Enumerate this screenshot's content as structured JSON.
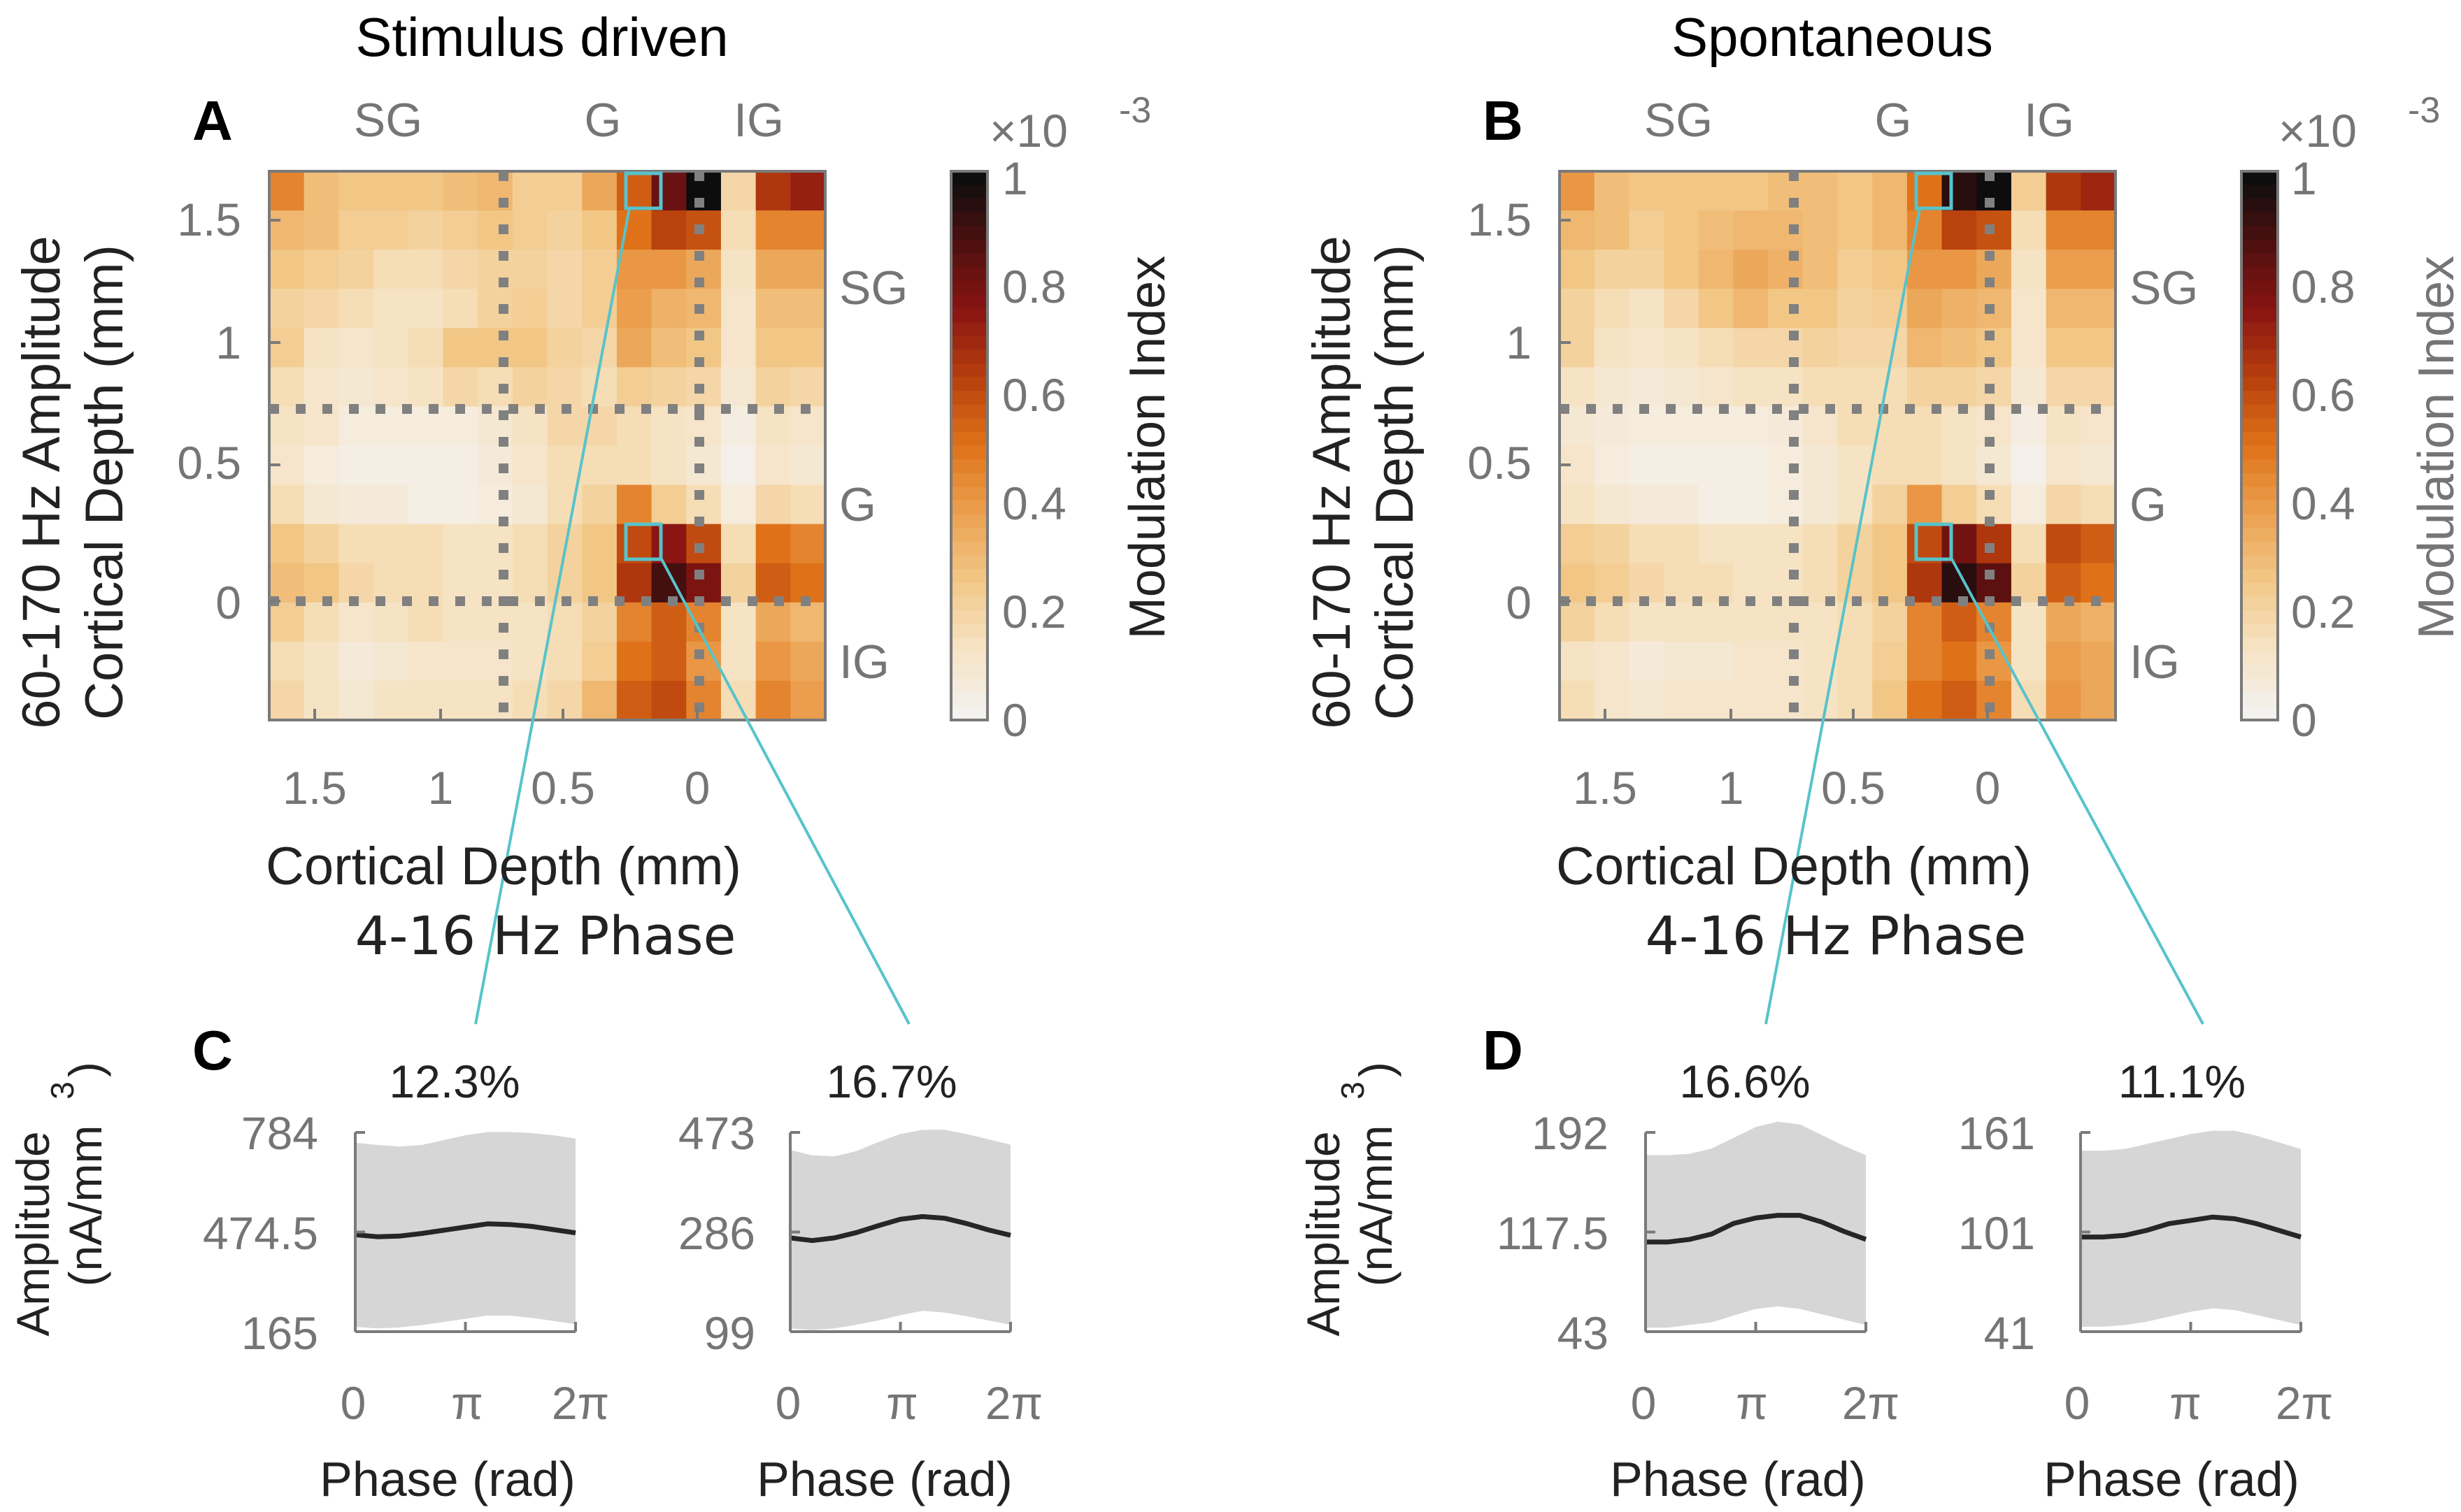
{
  "colors": {
    "axis_frame": "#7a7a7a",
    "tick_text": "#757575",
    "dotted_boundary": "#808080",
    "highlight_box": "#57c3ca",
    "callout_line": "#57c3ca",
    "trace_line": "#262626",
    "band_fill": "#d6d6d6",
    "colormap": [
      "#f4f2ef",
      "#f6e2c2",
      "#f2c786",
      "#eba04f",
      "#df7219",
      "#b8400d",
      "#8a1512",
      "#501010",
      "#0d0d0d"
    ]
  },
  "chart_data": [
    {
      "panel": "A",
      "type": "heatmap",
      "title": "Stimulus driven",
      "xlabel": "Cortical Depth (mm)",
      "xlabel2": "4-16 Hz Phase",
      "ylabel": "60-170 Hz Amplitude",
      "ylabel2": "Cortical Depth (mm)",
      "xticks": [
        "1.5",
        "1",
        "0.5",
        "0"
      ],
      "yticks": [
        "1.5",
        "1",
        "0.5",
        "0"
      ],
      "top_regions": [
        "SG",
        "G",
        "IG"
      ],
      "right_regions": [
        "SG",
        "G",
        "IG"
      ],
      "colorbar": {
        "label": "Modulation Index",
        "exponent": "×10",
        "exponent_power": "-3",
        "ticks": [
          "0",
          "0.2",
          "0.4",
          "0.6",
          "0.8",
          "1"
        ],
        "range": [
          0,
          1
        ]
      },
      "grid_values": [
        [
          0.45,
          0.28,
          0.25,
          0.25,
          0.25,
          0.28,
          0.3,
          0.22,
          0.22,
          0.35,
          0.55,
          0.82,
          1.0,
          0.18,
          0.65,
          0.72
        ],
        [
          0.3,
          0.28,
          0.22,
          0.22,
          0.2,
          0.22,
          0.25,
          0.22,
          0.2,
          0.25,
          0.5,
          0.62,
          0.58,
          0.15,
          0.45,
          0.45
        ],
        [
          0.25,
          0.22,
          0.2,
          0.15,
          0.15,
          0.18,
          0.2,
          0.2,
          0.18,
          0.22,
          0.4,
          0.4,
          0.35,
          0.12,
          0.35,
          0.35
        ],
        [
          0.2,
          0.18,
          0.15,
          0.12,
          0.12,
          0.15,
          0.2,
          0.22,
          0.18,
          0.22,
          0.38,
          0.32,
          0.3,
          0.1,
          0.28,
          0.28
        ],
        [
          0.22,
          0.12,
          0.1,
          0.12,
          0.15,
          0.25,
          0.25,
          0.25,
          0.2,
          0.18,
          0.35,
          0.28,
          0.25,
          0.1,
          0.25,
          0.25
        ],
        [
          0.15,
          0.1,
          0.08,
          0.1,
          0.12,
          0.18,
          0.15,
          0.2,
          0.18,
          0.15,
          0.22,
          0.2,
          0.18,
          0.08,
          0.2,
          0.18
        ],
        [
          0.12,
          0.1,
          0.05,
          0.05,
          0.05,
          0.05,
          0.08,
          0.12,
          0.18,
          0.18,
          0.15,
          0.12,
          0.1,
          0.04,
          0.12,
          0.1
        ],
        [
          0.1,
          0.05,
          0.03,
          0.03,
          0.03,
          0.03,
          0.06,
          0.1,
          0.15,
          0.15,
          0.15,
          0.12,
          0.08,
          0.02,
          0.1,
          0.08
        ],
        [
          0.15,
          0.08,
          0.06,
          0.06,
          0.03,
          0.03,
          0.05,
          0.08,
          0.15,
          0.2,
          0.45,
          0.22,
          0.15,
          0.05,
          0.18,
          0.15
        ],
        [
          0.25,
          0.2,
          0.15,
          0.15,
          0.15,
          0.12,
          0.12,
          0.15,
          0.2,
          0.25,
          0.6,
          0.75,
          0.6,
          0.15,
          0.5,
          0.45
        ],
        [
          0.28,
          0.25,
          0.18,
          0.15,
          0.15,
          0.12,
          0.12,
          0.15,
          0.2,
          0.25,
          0.65,
          0.9,
          0.78,
          0.2,
          0.55,
          0.5
        ],
        [
          0.22,
          0.15,
          0.1,
          0.12,
          0.15,
          0.12,
          0.12,
          0.12,
          0.15,
          0.2,
          0.45,
          0.55,
          0.45,
          0.12,
          0.35,
          0.3
        ],
        [
          0.15,
          0.12,
          0.06,
          0.08,
          0.1,
          0.1,
          0.1,
          0.12,
          0.15,
          0.22,
          0.5,
          0.55,
          0.4,
          0.12,
          0.4,
          0.35
        ],
        [
          0.18,
          0.12,
          0.08,
          0.12,
          0.12,
          0.12,
          0.12,
          0.15,
          0.18,
          0.3,
          0.55,
          0.6,
          0.45,
          0.15,
          0.45,
          0.38
        ]
      ]
    },
    {
      "panel": "B",
      "type": "heatmap",
      "title": "Spontaneous",
      "xlabel": "Cortical Depth (mm)",
      "xlabel2": "4-16 Hz Phase",
      "ylabel": "60-170 Hz Amplitude",
      "ylabel2": "Cortical Depth (mm)",
      "xticks": [
        "1.5",
        "1",
        "0.5",
        "0"
      ],
      "yticks": [
        "1.5",
        "1",
        "0.5",
        "0"
      ],
      "top_regions": [
        "SG",
        "G",
        "IG"
      ],
      "right_regions": [
        "SG",
        "G",
        "IG"
      ],
      "colorbar": {
        "label": "Modulation Index",
        "exponent": "×10",
        "exponent_power": "-3",
        "ticks": [
          "0",
          "0.2",
          "0.4",
          "0.6",
          "0.8",
          "1"
        ],
        "range": [
          0,
          1
        ]
      },
      "grid_values": [
        [
          0.4,
          0.28,
          0.25,
          0.25,
          0.25,
          0.25,
          0.28,
          0.28,
          0.25,
          0.3,
          0.5,
          0.95,
          1.0,
          0.22,
          0.65,
          0.7
        ],
        [
          0.3,
          0.28,
          0.22,
          0.25,
          0.28,
          0.3,
          0.3,
          0.28,
          0.25,
          0.3,
          0.45,
          0.62,
          0.58,
          0.15,
          0.45,
          0.45
        ],
        [
          0.25,
          0.2,
          0.2,
          0.25,
          0.3,
          0.35,
          0.32,
          0.28,
          0.22,
          0.25,
          0.4,
          0.4,
          0.35,
          0.12,
          0.38,
          0.38
        ],
        [
          0.2,
          0.15,
          0.12,
          0.18,
          0.25,
          0.3,
          0.25,
          0.25,
          0.2,
          0.22,
          0.35,
          0.32,
          0.3,
          0.1,
          0.3,
          0.3
        ],
        [
          0.2,
          0.12,
          0.1,
          0.12,
          0.15,
          0.18,
          0.18,
          0.2,
          0.18,
          0.18,
          0.3,
          0.28,
          0.25,
          0.1,
          0.25,
          0.25
        ],
        [
          0.12,
          0.08,
          0.06,
          0.08,
          0.1,
          0.12,
          0.12,
          0.15,
          0.15,
          0.15,
          0.2,
          0.2,
          0.18,
          0.08,
          0.18,
          0.18
        ],
        [
          0.08,
          0.06,
          0.05,
          0.05,
          0.05,
          0.05,
          0.06,
          0.1,
          0.15,
          0.15,
          0.15,
          0.12,
          0.1,
          0.04,
          0.12,
          0.1
        ],
        [
          0.1,
          0.05,
          0.03,
          0.03,
          0.03,
          0.03,
          0.05,
          0.08,
          0.12,
          0.15,
          0.15,
          0.12,
          0.08,
          0.02,
          0.1,
          0.08
        ],
        [
          0.12,
          0.08,
          0.06,
          0.06,
          0.03,
          0.03,
          0.05,
          0.08,
          0.12,
          0.2,
          0.4,
          0.22,
          0.15,
          0.05,
          0.18,
          0.15
        ],
        [
          0.22,
          0.2,
          0.15,
          0.15,
          0.12,
          0.12,
          0.12,
          0.15,
          0.2,
          0.25,
          0.6,
          0.8,
          0.65,
          0.15,
          0.6,
          0.55
        ],
        [
          0.25,
          0.22,
          0.18,
          0.15,
          0.15,
          0.12,
          0.12,
          0.15,
          0.2,
          0.25,
          0.65,
          0.95,
          0.85,
          0.2,
          0.55,
          0.5
        ],
        [
          0.2,
          0.15,
          0.12,
          0.12,
          0.12,
          0.12,
          0.12,
          0.12,
          0.15,
          0.2,
          0.45,
          0.55,
          0.45,
          0.12,
          0.35,
          0.32
        ],
        [
          0.12,
          0.1,
          0.06,
          0.08,
          0.08,
          0.1,
          0.1,
          0.12,
          0.15,
          0.22,
          0.45,
          0.5,
          0.4,
          0.12,
          0.38,
          0.35
        ],
        [
          0.15,
          0.1,
          0.08,
          0.1,
          0.1,
          0.1,
          0.1,
          0.12,
          0.15,
          0.25,
          0.5,
          0.55,
          0.45,
          0.15,
          0.4,
          0.35
        ]
      ]
    },
    {
      "panel": "C",
      "type": "line",
      "subplots": [
        {
          "percent_label": "12.3%",
          "ylabel": "Amplitude",
          "ylabel2": "(nA/mm",
          "ylabel_power": "3",
          "ylabel_close": ")",
          "yticks": [
            "784",
            "474.5",
            "165"
          ],
          "ylim": [
            165,
            784
          ],
          "xlabel": "Phase (rad)",
          "xticks": [
            "0",
            "π",
            "2π"
          ],
          "xlim": [
            0,
            6.283
          ],
          "x": [
            0,
            0.628,
            1.257,
            1.885,
            2.513,
            3.142,
            3.77,
            4.398,
            5.027,
            5.655,
            6.283
          ],
          "mean": [
            466,
            460,
            462,
            470,
            480,
            490,
            500,
            498,
            492,
            482,
            472
          ],
          "upper": [
            752,
            745,
            740,
            745,
            760,
            775,
            785,
            785,
            782,
            775,
            765
          ],
          "lower": [
            180,
            175,
            178,
            185,
            195,
            205,
            215,
            215,
            208,
            198,
            188
          ]
        },
        {
          "percent_label": "16.7%",
          "yticks": [
            "473",
            "286",
            "99"
          ],
          "ylim": [
            99,
            473
          ],
          "xlabel": "Phase (rad)",
          "xticks": [
            "0",
            "π",
            "2π"
          ],
          "xlim": [
            0,
            6.283
          ],
          "x": [
            0,
            0.628,
            1.257,
            1.885,
            2.513,
            3.142,
            3.77,
            4.398,
            5.027,
            5.655,
            6.283
          ],
          "mean": [
            275,
            270,
            275,
            285,
            298,
            310,
            315,
            312,
            302,
            290,
            280
          ],
          "upper": [
            440,
            430,
            428,
            438,
            455,
            470,
            478,
            478,
            470,
            460,
            450
          ],
          "lower": [
            105,
            102,
            105,
            112,
            120,
            130,
            138,
            135,
            128,
            120,
            112
          ]
        }
      ]
    },
    {
      "panel": "D",
      "type": "line",
      "subplots": [
        {
          "percent_label": "16.6%",
          "ylabel": "Amplitude",
          "ylabel2": "(nA/mm",
          "ylabel_power": "3",
          "ylabel_close": ")",
          "yticks": [
            "192",
            "117.5",
            "43"
          ],
          "ylim": [
            43,
            192
          ],
          "xlabel": "Phase (rad)",
          "xticks": [
            "0",
            "π",
            "2π"
          ],
          "xlim": [
            0,
            6.283
          ],
          "x": [
            0,
            0.628,
            1.257,
            1.885,
            2.513,
            3.142,
            3.77,
            4.398,
            5.027,
            5.655,
            6.283
          ],
          "mean": [
            110,
            110,
            112,
            116,
            124,
            128,
            130,
            130,
            125,
            118,
            112
          ],
          "upper": [
            175,
            175,
            176,
            180,
            188,
            196,
            200,
            198,
            190,
            182,
            175
          ],
          "lower": [
            46,
            46,
            48,
            50,
            55,
            60,
            62,
            60,
            56,
            52,
            48
          ]
        },
        {
          "percent_label": "11.1%",
          "yticks": [
            "161",
            "101",
            "41"
          ],
          "ylim": [
            41,
            161
          ],
          "xlabel": "Phase (rad)",
          "xticks": [
            "0",
            "π",
            "2π"
          ],
          "xlim": [
            0,
            6.283
          ],
          "x": [
            0,
            0.628,
            1.257,
            1.885,
            2.513,
            3.142,
            3.77,
            4.398,
            5.027,
            5.655,
            6.283
          ],
          "mean": [
            98,
            98,
            99,
            102,
            106,
            108,
            110,
            109,
            106,
            102,
            98
          ],
          "upper": [
            150,
            150,
            151,
            154,
            157,
            160,
            162,
            162,
            159,
            155,
            151
          ],
          "lower": [
            44,
            44,
            45,
            47,
            50,
            53,
            55,
            54,
            51,
            48,
            45
          ]
        }
      ]
    }
  ]
}
